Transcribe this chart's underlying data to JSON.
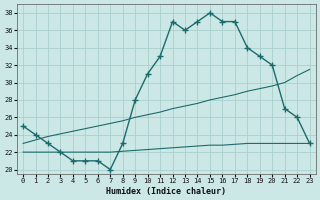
{
  "xlabel": "Humidex (Indice chaleur)",
  "bg_color": "#cce8e6",
  "grid_color": "#aacfcc",
  "line_color": "#1a6b6b",
  "xlim": [
    -0.5,
    23.5
  ],
  "ylim": [
    19.5,
    39.0
  ],
  "xticks": [
    0,
    1,
    2,
    3,
    4,
    5,
    6,
    7,
    8,
    9,
    10,
    11,
    12,
    13,
    14,
    15,
    16,
    17,
    18,
    19,
    20,
    21,
    22,
    23
  ],
  "yticks": [
    20,
    22,
    24,
    26,
    28,
    30,
    32,
    34,
    36,
    38
  ],
  "curve_x": [
    0,
    1,
    2,
    3,
    4,
    5,
    6,
    7,
    8,
    9,
    10,
    11,
    12,
    13,
    14,
    15,
    16,
    17,
    18,
    19,
    20,
    21,
    22,
    23
  ],
  "curve_y": [
    25,
    24,
    23,
    22,
    21,
    21,
    21,
    20,
    23,
    28,
    31,
    33,
    37,
    36,
    37,
    38,
    37,
    37,
    34,
    33,
    32,
    27,
    26,
    23
  ],
  "diag1_x": [
    0,
    1,
    2,
    3,
    4,
    5,
    6,
    7,
    8,
    9,
    10,
    11,
    12,
    13,
    14,
    15,
    16,
    17,
    18,
    19,
    20,
    21,
    22,
    23
  ],
  "diag1_y": [
    23,
    23.4,
    23.8,
    24.1,
    24.4,
    24.7,
    25.0,
    25.3,
    25.6,
    26.0,
    26.3,
    26.6,
    27.0,
    27.3,
    27.6,
    28.0,
    28.3,
    28.6,
    29.0,
    29.3,
    29.6,
    30.0,
    30.8,
    31.5
  ],
  "diag2_x": [
    0,
    1,
    2,
    3,
    4,
    5,
    6,
    7,
    8,
    9,
    10,
    11,
    12,
    13,
    14,
    15,
    16,
    17,
    18,
    19,
    20,
    21,
    22,
    23
  ],
  "diag2_y": [
    22,
    22,
    22,
    22,
    22,
    22,
    22,
    22,
    22.1,
    22.2,
    22.3,
    22.4,
    22.5,
    22.6,
    22.7,
    22.8,
    22.8,
    22.9,
    23.0,
    23.0,
    23.0,
    23.0,
    23.0,
    23.0
  ],
  "xlabel_fontsize": 6,
  "tick_fontsize": 5
}
